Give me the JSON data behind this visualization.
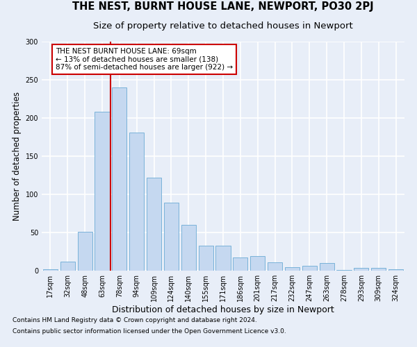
{
  "title": "THE NEST, BURNT HOUSE LANE, NEWPORT, PO30 2PJ",
  "subtitle": "Size of property relative to detached houses in Newport",
  "xlabel": "Distribution of detached houses by size in Newport",
  "ylabel": "Number of detached properties",
  "footnote1": "Contains HM Land Registry data © Crown copyright and database right 2024.",
  "footnote2": "Contains public sector information licensed under the Open Government Licence v3.0.",
  "categories": [
    "17sqm",
    "32sqm",
    "48sqm",
    "63sqm",
    "78sqm",
    "94sqm",
    "109sqm",
    "124sqm",
    "140sqm",
    "155sqm",
    "171sqm",
    "186sqm",
    "201sqm",
    "217sqm",
    "232sqm",
    "247sqm",
    "263sqm",
    "278sqm",
    "293sqm",
    "309sqm",
    "324sqm"
  ],
  "values": [
    2,
    12,
    51,
    208,
    240,
    181,
    122,
    89,
    60,
    33,
    33,
    17,
    19,
    11,
    5,
    6,
    10,
    1,
    4,
    4,
    2
  ],
  "bar_color": "#c5d8f0",
  "bar_edge_color": "#6aaad4",
  "vline_x_index": 3,
  "vline_color": "#cc0000",
  "annotation_text": "THE NEST BURNT HOUSE LANE: 69sqm\n← 13% of detached houses are smaller (138)\n87% of semi-detached houses are larger (922) →",
  "annotation_box_color": "white",
  "annotation_box_edge_color": "#cc0000",
  "ylim": [
    0,
    300
  ],
  "yticks": [
    0,
    50,
    100,
    150,
    200,
    250,
    300
  ],
  "background_color": "#e8eef8",
  "plot_bg_color": "#e8eef8",
  "grid_color": "white",
  "title_fontsize": 10.5,
  "subtitle_fontsize": 9.5,
  "xlabel_fontsize": 9,
  "ylabel_fontsize": 8.5,
  "tick_fontsize": 7,
  "annotation_fontsize": 7.5,
  "footnote_fontsize": 6.5
}
